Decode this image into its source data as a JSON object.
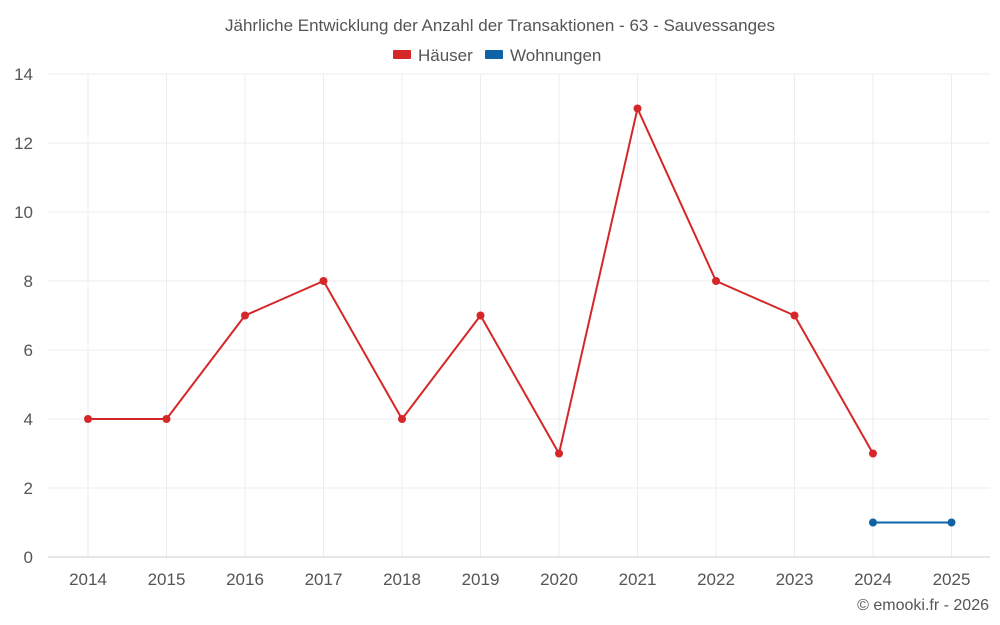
{
  "chart_data": {
    "type": "line",
    "title": "Jährliche Entwicklung der Anzahl der Transaktionen - 63 - Sauvessanges",
    "categories": [
      "2014",
      "2015",
      "2016",
      "2017",
      "2018",
      "2019",
      "2020",
      "2021",
      "2022",
      "2023",
      "2024",
      "2025"
    ],
    "ylim": [
      0,
      14
    ],
    "yticks": [
      0,
      2,
      4,
      6,
      8,
      10,
      12,
      14
    ],
    "grid": true,
    "legend_position": "top-center",
    "series": [
      {
        "name": "Häuser",
        "color": "#d62728",
        "values": [
          4,
          4,
          7,
          8,
          4,
          7,
          3,
          13,
          8,
          7,
          3,
          null
        ]
      },
      {
        "name": "Wohnungen",
        "color": "#0d63a5",
        "values": [
          null,
          null,
          null,
          null,
          null,
          null,
          null,
          null,
          null,
          null,
          1,
          1
        ]
      }
    ]
  },
  "credit": "© emooki.fr - 2026"
}
